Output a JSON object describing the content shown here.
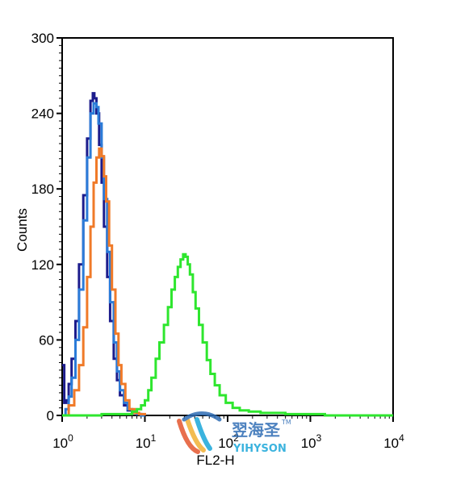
{
  "chart_data": {
    "type": "line",
    "title": "",
    "xlabel": "FL2-H",
    "ylabel": "Counts",
    "xscale": "log",
    "xlim": [
      1,
      10000
    ],
    "ylim": [
      0,
      300
    ],
    "grid": false,
    "x_ticks": [
      {
        "base": "10",
        "exp": "0",
        "value": 1
      },
      {
        "base": "10",
        "exp": "1",
        "value": 10
      },
      {
        "base": "10",
        "exp": "2",
        "value": 100
      },
      {
        "base": "10",
        "exp": "3",
        "value": 1000
      },
      {
        "base": "10",
        "exp": "4",
        "value": 10000
      }
    ],
    "y_ticks": [
      "0",
      "60",
      "120",
      "180",
      "240",
      "300"
    ],
    "series": [
      {
        "color": "#1c1c8c",
        "x": [
          1.0,
          1.06,
          1.12,
          1.2,
          1.3,
          1.45,
          1.6,
          1.8,
          2.0,
          2.2,
          2.35,
          2.45,
          2.6,
          2.8,
          3.0,
          3.2,
          3.5,
          3.8,
          4.2,
          4.6,
          5.0,
          5.6,
          6.2,
          7.0,
          8.0,
          9.0,
          10.0
        ],
        "values": [
          40,
          10,
          12,
          25,
          45,
          75,
          120,
          175,
          220,
          250,
          256,
          252,
          240,
          215,
          185,
          150,
          110,
          75,
          45,
          28,
          16,
          8,
          4,
          2,
          1,
          0,
          0
        ]
      },
      {
        "color": "#2b7bd8",
        "x": [
          1.0,
          1.1,
          1.2,
          1.3,
          1.45,
          1.6,
          1.8,
          2.0,
          2.2,
          2.4,
          2.6,
          2.75,
          3.0,
          3.2,
          3.5,
          3.8,
          4.2,
          4.6,
          5.0,
          5.6,
          6.2,
          7.0,
          8.0,
          9.0,
          10.0
        ],
        "values": [
          0,
          5,
          15,
          30,
          60,
          100,
          155,
          205,
          240,
          248,
          245,
          232,
          205,
          172,
          130,
          90,
          58,
          35,
          20,
          10,
          5,
          2,
          1,
          0,
          0
        ]
      },
      {
        "color": "#f07a28",
        "x": [
          1.0,
          1.2,
          1.4,
          1.6,
          1.8,
          2.0,
          2.2,
          2.4,
          2.6,
          2.8,
          3.0,
          3.2,
          3.4,
          3.7,
          4.0,
          4.4,
          4.8,
          5.2,
          5.8,
          6.5,
          7.5,
          8.5,
          10.0
        ],
        "values": [
          0,
          8,
          20,
          40,
          70,
          110,
          150,
          185,
          205,
          212,
          206,
          190,
          170,
          135,
          100,
          65,
          40,
          25,
          12,
          5,
          2,
          1,
          0
        ]
      },
      {
        "color": "#2ee62e",
        "x": [
          1.0,
          3.0,
          5.0,
          7.0,
          8.0,
          9.0,
          10.0,
          11.0,
          12.0,
          13.5,
          15.0,
          17.0,
          19.0,
          21.0,
          23.0,
          25.0,
          27.0,
          29.0,
          31.0,
          33.0,
          35.0,
          38.0,
          41.0,
          45.0,
          50.0,
          56.0,
          62.0,
          70.0,
          80.0,
          95.0,
          115.0,
          140.0,
          180.0,
          250.0,
          350.0,
          500.0,
          800.0,
          1500.0,
          3000.0,
          10000.0
        ],
        "values": [
          0,
          1,
          1,
          3,
          5,
          8,
          12,
          20,
          30,
          45,
          58,
          72,
          86,
          100,
          110,
          118,
          124,
          128,
          126,
          120,
          112,
          98,
          85,
          72,
          58,
          44,
          33,
          24,
          16,
          10,
          6,
          4,
          3,
          2,
          2,
          1,
          1,
          0,
          0,
          0
        ]
      }
    ]
  },
  "watermark": {
    "cn_text": "翌海圣",
    "tm": "TM",
    "en_text": "YIHYSON",
    "colors": [
      "#e4572e",
      "#f2b134",
      "#1aa6d9",
      "#2f6db5"
    ]
  }
}
